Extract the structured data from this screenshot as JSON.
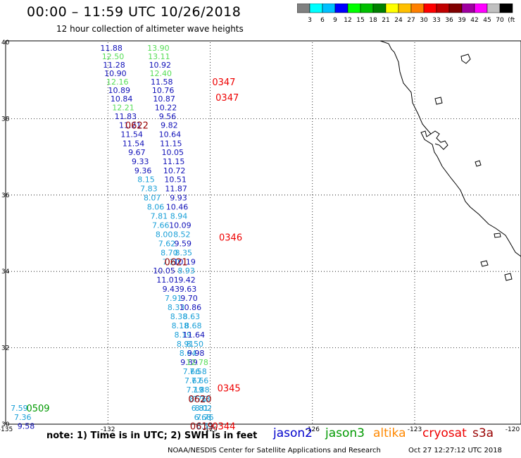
{
  "header": {
    "title": "00:00 – 11:59 UTC 10/26/2018",
    "subtitle": "12 hour collection of altimeter wave heights"
  },
  "colorbar": {
    "colors": [
      "#808080",
      "#00ffff",
      "#00c0ff",
      "#0000ff",
      "#00ff00",
      "#00c000",
      "#008000",
      "#ffff00",
      "#ffc000",
      "#ff8000",
      "#ff0000",
      "#c00000",
      "#800000",
      "#a000a0",
      "#ff00ff",
      "#c0c0c0",
      "#000000"
    ],
    "labels": [
      "3",
      "6",
      "9",
      "12",
      "15",
      "18",
      "21",
      "24",
      "27",
      "30",
      "33",
      "36",
      "39",
      "42",
      "45",
      "70",
      "(ft)"
    ]
  },
  "axes": {
    "lon_labels": [
      "-135",
      "-132",
      "-129",
      "-126",
      "-123",
      "-120"
    ],
    "lat_labels": [
      "40",
      "38",
      "36",
      "34",
      "32",
      "30"
    ]
  },
  "colors": {
    "jason2": "#0000cc",
    "jason3": "#009900",
    "altika": "#ff8800",
    "cryosat": "#ee0000",
    "s3a": "#990000",
    "swh_low": "#1aa0d8",
    "swh_mid": "#1010b8",
    "swh_high": "#55dd55",
    "pass_dark": "#770000"
  },
  "observations": {
    "track_a": [
      {
        "v": "11.88",
        "lon": -131.9,
        "lat": 39.85,
        "c": "swh_mid"
      },
      {
        "v": "12.50",
        "lon": -131.85,
        "lat": 39.63,
        "c": "swh_high"
      },
      {
        "v": "11.28",
        "lon": -131.82,
        "lat": 39.41,
        "c": "swh_mid"
      },
      {
        "v": "10.90",
        "lon": -131.78,
        "lat": 39.19,
        "c": "swh_mid"
      },
      {
        "v": "12.16",
        "lon": -131.72,
        "lat": 38.97,
        "c": "swh_high"
      },
      {
        "v": "10.89",
        "lon": -131.67,
        "lat": 38.75,
        "c": "swh_mid"
      },
      {
        "v": "10.84",
        "lon": -131.6,
        "lat": 38.52,
        "c": "swh_mid"
      },
      {
        "v": "12.21",
        "lon": -131.55,
        "lat": 38.29,
        "c": "swh_high"
      },
      {
        "v": "11.83",
        "lon": -131.48,
        "lat": 38.06,
        "c": "swh_mid"
      },
      {
        "v": "11.21",
        "lon": -131.35,
        "lat": 37.83,
        "c": "swh_mid"
      },
      {
        "v": "11.54",
        "lon": -131.3,
        "lat": 37.59,
        "c": "swh_mid"
      },
      {
        "v": "11.54",
        "lon": -131.25,
        "lat": 37.35,
        "c": "swh_mid"
      },
      {
        "v": "9.67",
        "lon": -131.15,
        "lat": 37.12,
        "c": "swh_mid"
      },
      {
        "v": "9.33",
        "lon": -131.05,
        "lat": 36.88,
        "c": "swh_mid"
      },
      {
        "v": "9.36",
        "lon": -130.97,
        "lat": 36.64,
        "c": "swh_mid"
      },
      {
        "v": "8.15",
        "lon": -130.88,
        "lat": 36.41,
        "c": "swh_low"
      },
      {
        "v": "7.83",
        "lon": -130.8,
        "lat": 36.17,
        "c": "swh_low"
      },
      {
        "v": "8.07",
        "lon": -130.7,
        "lat": 35.93,
        "c": "swh_low"
      },
      {
        "v": "8.06",
        "lon": -130.6,
        "lat": 35.69,
        "c": "swh_low"
      },
      {
        "v": "7.81",
        "lon": -130.5,
        "lat": 35.45,
        "c": "swh_low"
      },
      {
        "v": "7.66",
        "lon": -130.45,
        "lat": 35.21,
        "c": "swh_low"
      },
      {
        "v": "8.00",
        "lon": -130.35,
        "lat": 34.97,
        "c": "swh_low"
      },
      {
        "v": "7.62",
        "lon": -130.27,
        "lat": 34.73,
        "c": "swh_low"
      },
      {
        "v": "8.70",
        "lon": -130.2,
        "lat": 34.49,
        "c": "swh_low"
      },
      {
        "v": "7.20",
        "lon": -130.15,
        "lat": 34.25,
        "c": "swh_low"
      },
      {
        "v": "10.05",
        "lon": -130.35,
        "lat": 34.02,
        "c": "swh_mid"
      },
      {
        "v": "11.01",
        "lon": -130.25,
        "lat": 33.78,
        "c": "swh_mid"
      },
      {
        "v": "9.43",
        "lon": -130.15,
        "lat": 33.54,
        "c": "swh_mid"
      },
      {
        "v": "7.91",
        "lon": -130.08,
        "lat": 33.3,
        "c": "swh_low"
      },
      {
        "v": "8.33",
        "lon": -130.0,
        "lat": 33.06,
        "c": "swh_low"
      },
      {
        "v": "8.38",
        "lon": -129.92,
        "lat": 32.82,
        "c": "swh_low"
      },
      {
        "v": "8.18",
        "lon": -129.88,
        "lat": 32.58,
        "c": "swh_low"
      },
      {
        "v": "8.19",
        "lon": -129.8,
        "lat": 32.34,
        "c": "swh_low"
      },
      {
        "v": "8.91",
        "lon": -129.73,
        "lat": 32.1,
        "c": "swh_low"
      },
      {
        "v": "8.64",
        "lon": -129.65,
        "lat": 31.86,
        "c": "swh_low"
      },
      {
        "v": "9.89",
        "lon": -129.62,
        "lat": 31.62,
        "c": "swh_mid"
      },
      {
        "v": "7.66",
        "lon": -129.55,
        "lat": 31.38,
        "c": "swh_low"
      },
      {
        "v": "7.67",
        "lon": -129.5,
        "lat": 31.14,
        "c": "swh_low"
      },
      {
        "v": "7.19",
        "lon": -129.45,
        "lat": 30.9,
        "c": "swh_low"
      },
      {
        "v": "8.76",
        "lon": -129.35,
        "lat": 30.66,
        "c": "swh_low"
      },
      {
        "v": "6.81",
        "lon": -129.3,
        "lat": 30.42,
        "c": "swh_low"
      },
      {
        "v": "6.68",
        "lon": -129.22,
        "lat": 30.18,
        "c": "swh_low"
      },
      {
        "v": "6.53",
        "lon": -129.15,
        "lat": 29.95,
        "c": "swh_low"
      }
    ],
    "track_b": [
      {
        "v": "13.90",
        "lon": -130.52,
        "lat": 39.85,
        "c": "swh_high"
      },
      {
        "v": "13.11",
        "lon": -130.5,
        "lat": 39.63,
        "c": "swh_high"
      },
      {
        "v": "10.92",
        "lon": -130.47,
        "lat": 39.41,
        "c": "swh_mid"
      },
      {
        "v": "12.40",
        "lon": -130.45,
        "lat": 39.19,
        "c": "swh_high"
      },
      {
        "v": "11.58",
        "lon": -130.42,
        "lat": 38.97,
        "c": "swh_mid"
      },
      {
        "v": "10.76",
        "lon": -130.38,
        "lat": 38.75,
        "c": "swh_mid"
      },
      {
        "v": "10.87",
        "lon": -130.35,
        "lat": 38.52,
        "c": "swh_mid"
      },
      {
        "v": "10.22",
        "lon": -130.3,
        "lat": 38.29,
        "c": "swh_mid"
      },
      {
        "v": "9.56",
        "lon": -130.25,
        "lat": 38.06,
        "c": "swh_mid"
      },
      {
        "v": "9.82",
        "lon": -130.2,
        "lat": 37.83,
        "c": "swh_mid"
      },
      {
        "v": "10.64",
        "lon": -130.18,
        "lat": 37.59,
        "c": "swh_mid"
      },
      {
        "v": "11.15",
        "lon": -130.15,
        "lat": 37.35,
        "c": "swh_mid"
      },
      {
        "v": "10.05",
        "lon": -130.1,
        "lat": 37.12,
        "c": "swh_mid"
      },
      {
        "v": "11.15",
        "lon": -130.07,
        "lat": 36.88,
        "c": "swh_mid"
      },
      {
        "v": "10.72",
        "lon": -130.05,
        "lat": 36.64,
        "c": "swh_mid"
      },
      {
        "v": "10.51",
        "lon": -130.02,
        "lat": 36.41,
        "c": "swh_mid"
      },
      {
        "v": "11.87",
        "lon": -130.0,
        "lat": 36.17,
        "c": "swh_mid"
      },
      {
        "v": "9.93",
        "lon": -129.93,
        "lat": 35.93,
        "c": "swh_mid"
      },
      {
        "v": "10.46",
        "lon": -129.97,
        "lat": 35.69,
        "c": "swh_mid"
      },
      {
        "v": "8.94",
        "lon": -129.92,
        "lat": 35.45,
        "c": "swh_low"
      },
      {
        "v": "10.09",
        "lon": -129.88,
        "lat": 35.21,
        "c": "swh_mid"
      },
      {
        "v": "8.52",
        "lon": -129.83,
        "lat": 34.97,
        "c": "swh_low"
      },
      {
        "v": "9.59",
        "lon": -129.8,
        "lat": 34.73,
        "c": "swh_mid"
      },
      {
        "v": "8.35",
        "lon": -129.78,
        "lat": 34.49,
        "c": "swh_low"
      },
      {
        "v": "10.19",
        "lon": -129.75,
        "lat": 34.25,
        "c": "swh_mid"
      },
      {
        "v": "8.93",
        "lon": -129.7,
        "lat": 34.02,
        "c": "swh_low"
      },
      {
        "v": "9.42",
        "lon": -129.68,
        "lat": 33.78,
        "c": "swh_mid"
      },
      {
        "v": "9.63",
        "lon": -129.65,
        "lat": 33.54,
        "c": "swh_mid"
      },
      {
        "v": "9.70",
        "lon": -129.62,
        "lat": 33.3,
        "c": "swh_mid"
      },
      {
        "v": "10.86",
        "lon": -129.58,
        "lat": 33.06,
        "c": "swh_mid"
      },
      {
        "v": "8.63",
        "lon": -129.55,
        "lat": 32.82,
        "c": "swh_low"
      },
      {
        "v": "8.68",
        "lon": -129.5,
        "lat": 32.58,
        "c": "swh_low"
      },
      {
        "v": "11.64",
        "lon": -129.48,
        "lat": 32.34,
        "c": "swh_mid"
      },
      {
        "v": "8.50",
        "lon": -129.45,
        "lat": 32.1,
        "c": "swh_low"
      },
      {
        "v": "9.98",
        "lon": -129.42,
        "lat": 31.86,
        "c": "swh_mid"
      },
      {
        "v": "12.78",
        "lon": -129.38,
        "lat": 31.62,
        "c": "swh_high"
      },
      {
        "v": "7.58",
        "lon": -129.35,
        "lat": 31.38,
        "c": "swh_low"
      },
      {
        "v": "7.66",
        "lon": -129.3,
        "lat": 31.14,
        "c": "swh_low"
      },
      {
        "v": "7.88",
        "lon": -129.27,
        "lat": 30.9,
        "c": "swh_low"
      },
      {
        "v": "7.33",
        "lon": -129.25,
        "lat": 30.66,
        "c": "swh_low"
      },
      {
        "v": "8.02",
        "lon": -129.2,
        "lat": 30.42,
        "c": "swh_low"
      },
      {
        "v": "7.76",
        "lon": -129.15,
        "lat": 30.18,
        "c": "swh_low"
      }
    ],
    "track_c": [
      {
        "v": "7.59",
        "lon": -134.6,
        "lat": 30.42,
        "c": "swh_low"
      },
      {
        "v": "7.36",
        "lon": -134.5,
        "lat": 30.18,
        "c": "swh_low"
      },
      {
        "v": "9.58",
        "lon": -134.4,
        "lat": 29.95,
        "c": "swh_mid"
      }
    ]
  },
  "pass_times": [
    {
      "v": "0347",
      "lon": -128.6,
      "lat": 38.97,
      "c": "cryosat"
    },
    {
      "v": "0347",
      "lon": -128.5,
      "lat": 38.56,
      "c": "cryosat"
    },
    {
      "v": "0622",
      "lon": -131.15,
      "lat": 37.83,
      "c": "s3a"
    },
    {
      "v": "0346",
      "lon": -128.4,
      "lat": 34.9,
      "c": "cryosat"
    },
    {
      "v": "0621",
      "lon": -130.0,
      "lat": 34.25,
      "c": "s3a"
    },
    {
      "v": "0345",
      "lon": -128.45,
      "lat": 30.95,
      "c": "cryosat"
    },
    {
      "v": "0620",
      "lon": -129.3,
      "lat": 30.66,
      "c": "s3a"
    },
    {
      "v": "0619",
      "lon": -129.25,
      "lat": 29.95,
      "c": "s3a"
    },
    {
      "v": "0344",
      "lon": -128.6,
      "lat": 29.95,
      "c": "cryosat"
    },
    {
      "v": "0509",
      "lon": -134.05,
      "lat": 30.42,
      "c": "jason3"
    }
  ],
  "footer": {
    "note": "note: 1) Time is in UTC; 2) SWH is in feet",
    "satellites": [
      {
        "name": "jason2",
        "c": "jason2"
      },
      {
        "name": "jason3",
        "c": "jason3"
      },
      {
        "name": "altika",
        "c": "altika"
      },
      {
        "name": "cryosat",
        "c": "cryosat"
      },
      {
        "name": "s3a",
        "c": "s3a"
      }
    ],
    "credit": "NOAA/NESDIS Center for Satellite Applications and Research",
    "timestamp": "Oct 27 12:27:12 UTC 2018"
  }
}
